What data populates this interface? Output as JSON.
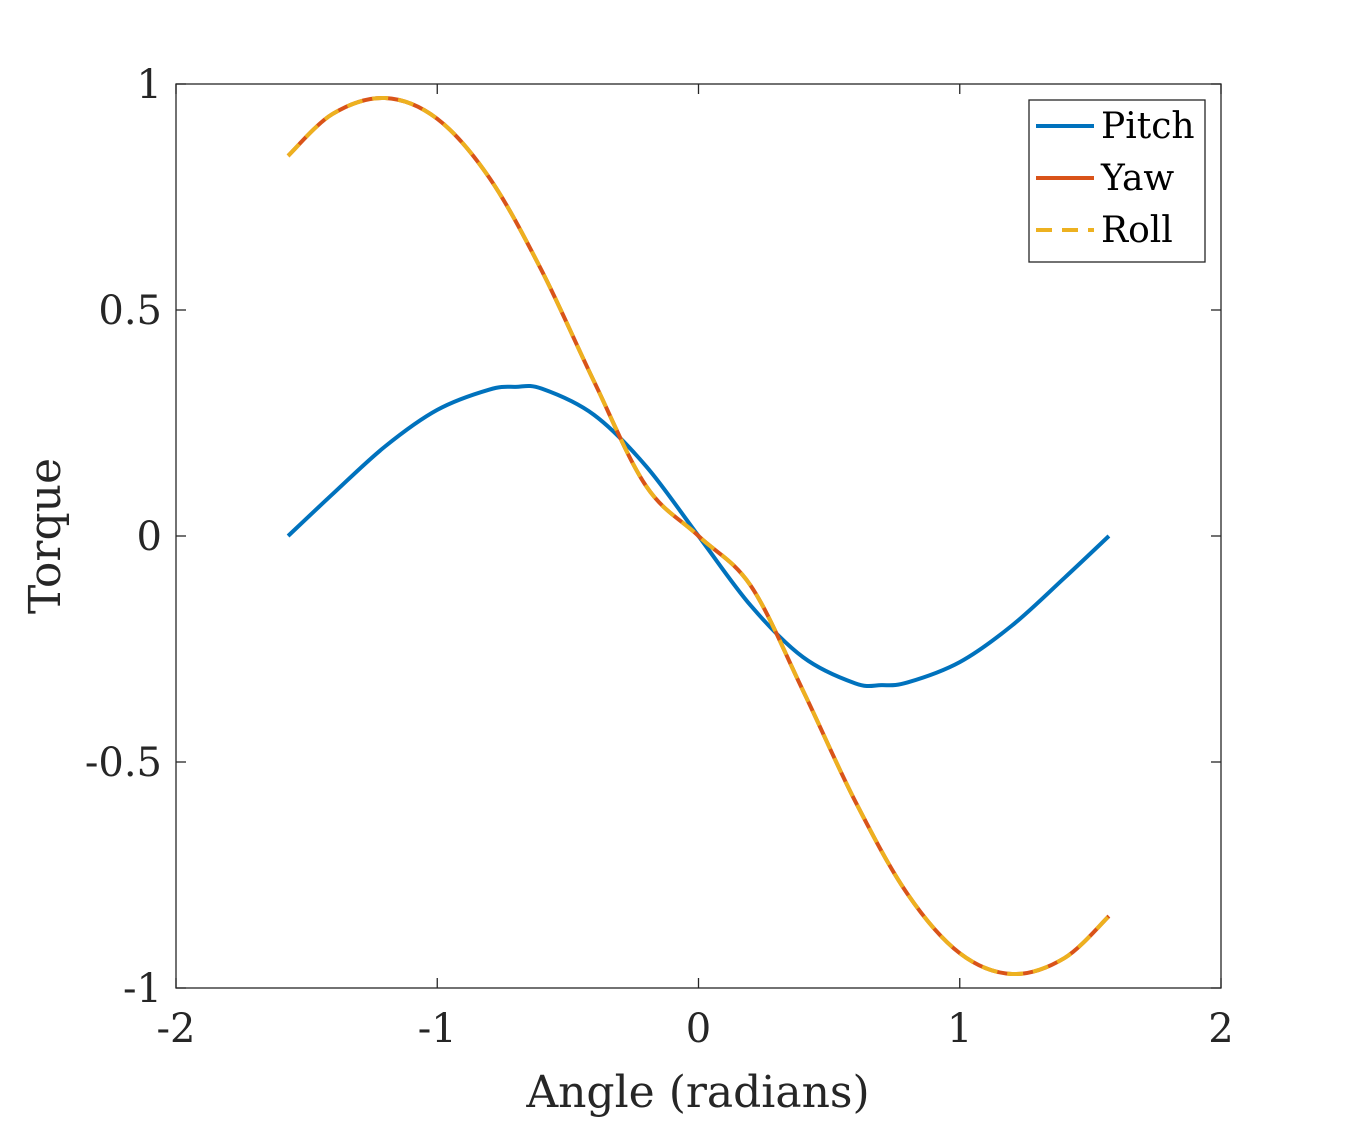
{
  "chart_data": {
    "type": "line",
    "title": "",
    "xlabel": "Angle (radians)",
    "ylabel": "Torque",
    "xlim": [
      -2,
      2
    ],
    "ylim": [
      -1,
      1
    ],
    "xticks": [
      -2,
      -1,
      0,
      1,
      2
    ],
    "xtick_labels": [
      "-2",
      "-1",
      "0",
      "1",
      "2"
    ],
    "yticks": [
      -1,
      -0.5,
      0,
      0.5,
      1
    ],
    "ytick_labels": [
      "-1",
      "-0.5",
      "0",
      "0.5",
      "1"
    ],
    "grid": false,
    "legend_position": "top-right",
    "series": [
      {
        "name": "Pitch",
        "color": "#0072BD",
        "style": "solid",
        "x": [
          -1.571,
          -1.4,
          -1.2,
          -1.0,
          -0.8,
          -0.7,
          -0.6,
          -0.4,
          -0.2,
          0.0,
          0.2,
          0.4,
          0.6,
          0.7,
          0.8,
          1.0,
          1.2,
          1.4,
          1.571
        ],
        "y": [
          0.0,
          0.093,
          0.198,
          0.279,
          0.324,
          0.33,
          0.326,
          0.268,
          0.154,
          0.0,
          -0.154,
          -0.268,
          -0.326,
          -0.33,
          -0.324,
          -0.279,
          -0.198,
          -0.093,
          0.0
        ]
      },
      {
        "name": "Yaw",
        "color": "#D95319",
        "style": "solid",
        "x": [
          -1.571,
          -1.4,
          -1.2,
          -1.0,
          -0.8,
          -0.6,
          -0.4,
          -0.2,
          0.0,
          0.2,
          0.4,
          0.6,
          0.8,
          1.0,
          1.2,
          1.4,
          1.571
        ],
        "y": [
          0.841,
          0.934,
          0.969,
          0.923,
          0.792,
          0.587,
          0.342,
          0.11,
          0.0,
          -0.11,
          -0.342,
          -0.587,
          -0.792,
          -0.923,
          -0.969,
          -0.934,
          -0.841
        ]
      },
      {
        "name": "Roll",
        "color": "#EDB120",
        "style": "dashed",
        "x": [
          -1.571,
          -1.4,
          -1.2,
          -1.0,
          -0.8,
          -0.6,
          -0.4,
          -0.2,
          0.0,
          0.2,
          0.4,
          0.6,
          0.8,
          1.0,
          1.2,
          1.4,
          1.571
        ],
        "y": [
          0.841,
          0.934,
          0.969,
          0.923,
          0.792,
          0.587,
          0.342,
          0.11,
          0.0,
          -0.11,
          -0.342,
          -0.587,
          -0.792,
          -0.923,
          -0.969,
          -0.934,
          -0.841
        ]
      }
    ]
  }
}
